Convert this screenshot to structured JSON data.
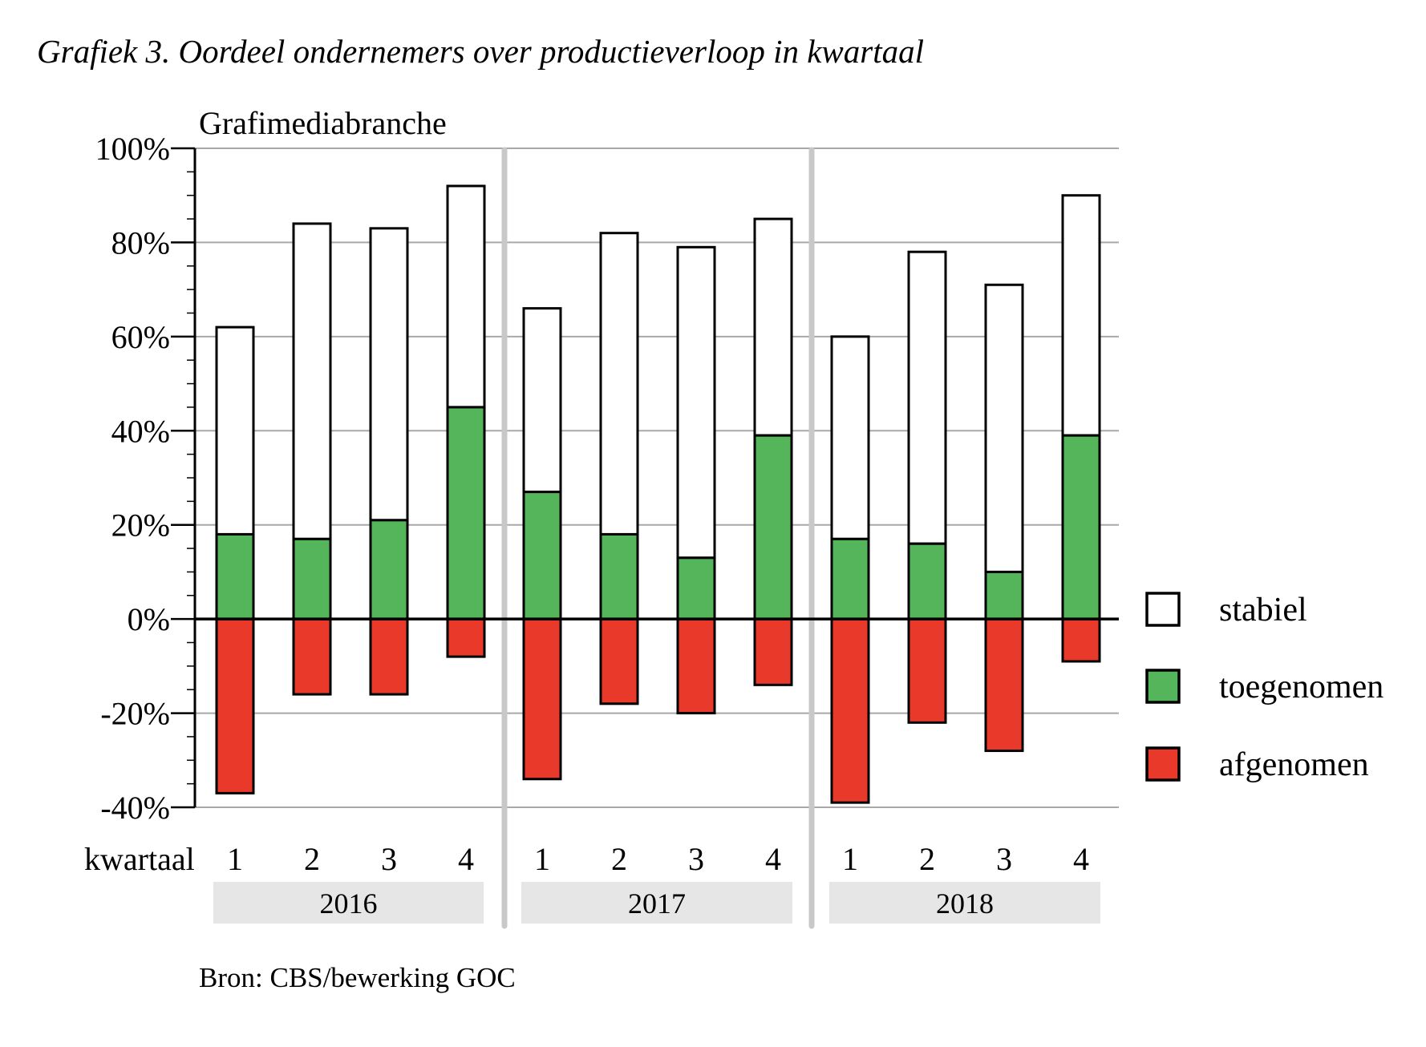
{
  "chart_data": {
    "type": "bar",
    "stacked": true,
    "title": "Grafiek 3.  Oordeel ondernemers over productieverloop in kwartaal",
    "subtitle": "Grafimediabranche",
    "xlabel": "kwartaal",
    "ylabel": "",
    "ylim": [
      -40,
      100
    ],
    "yticks": [
      -40,
      -20,
      0,
      20,
      40,
      60,
      80,
      100
    ],
    "ytick_labels": [
      "-40%",
      "-20%",
      "0%",
      "20%",
      "40%",
      "60%",
      "80%",
      "100%"
    ],
    "grid": true,
    "legend_position": "right",
    "groups": [
      {
        "label": "2016",
        "quarters": [
          "1",
          "2",
          "3",
          "4"
        ]
      },
      {
        "label": "2017",
        "quarters": [
          "1",
          "2",
          "3",
          "4"
        ]
      },
      {
        "label": "2018",
        "quarters": [
          "1",
          "2",
          "3",
          "4"
        ]
      }
    ],
    "series": [
      {
        "name": "stabiel",
        "color": "#ffffff",
        "values": [
          44,
          67,
          62,
          47,
          39,
          64,
          66,
          46,
          43,
          62,
          61,
          51
        ]
      },
      {
        "name": "toegenomen",
        "color": "#55b55a",
        "values": [
          18,
          17,
          21,
          45,
          27,
          18,
          13,
          39,
          17,
          16,
          10,
          39
        ]
      },
      {
        "name": "afgenomen",
        "color": "#e8392a",
        "values": [
          -37,
          -16,
          -16,
          -8,
          -34,
          -18,
          -20,
          -14,
          -39,
          -22,
          -28,
          -9
        ]
      }
    ],
    "source": "Bron: CBS/bewerking GOC"
  }
}
